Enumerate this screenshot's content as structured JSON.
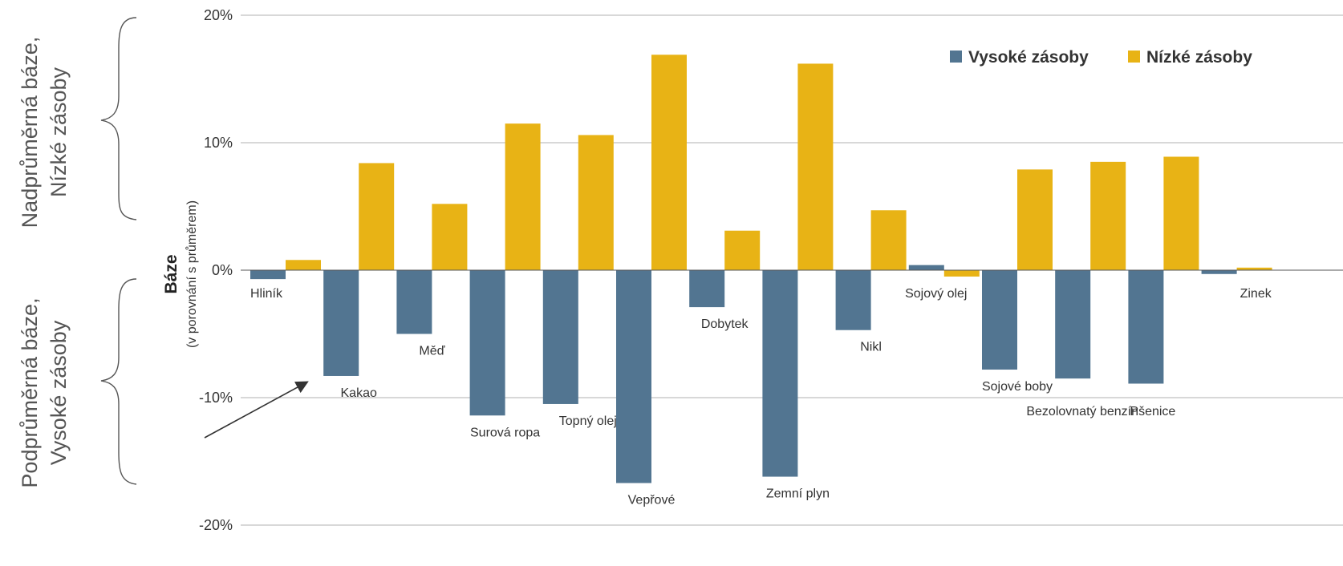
{
  "colors": {
    "high": "#527591",
    "low": "#E8B315",
    "grid": "#999999",
    "zero": "#555555",
    "arrow": "#333333",
    "brace": "#555555"
  },
  "labels": {
    "upper_side_line1": "Nadprůměrná báze,",
    "upper_side_line2": "Nízké zásoby",
    "lower_side_line1": "Podprůměrná báze,",
    "lower_side_line2": "Vysoké zásoby",
    "ylabel": "Báze",
    "ylabel_sub": "(v porovnání s průměrem)"
  },
  "chart_data": {
    "type": "bar",
    "title": "",
    "ylim": [
      -20,
      20
    ],
    "yticks": [
      20,
      10,
      0,
      -10,
      -20
    ],
    "ytick_labels": [
      "20%",
      "10%",
      "0%",
      "-10%",
      "-20%"
    ],
    "grid": true,
    "legend_position": "top-right",
    "categories": [
      "Hliník",
      "Kakao",
      "Měď",
      "Surová ropa",
      "Topný olej",
      "Vepřové",
      "Dobytek",
      "Zemní plyn",
      "Nikl",
      "Sojový olej",
      "Sojové boby",
      "Bezolovnatý benzín",
      "Pšenice",
      "Zinek"
    ],
    "series": [
      {
        "name": "Vysoké zásoby",
        "values": [
          -0.7,
          -8.3,
          -5.0,
          -11.4,
          -10.5,
          -16.7,
          -2.9,
          -16.2,
          -4.7,
          0.4,
          -7.8,
          -8.5,
          -8.9,
          -0.3
        ]
      },
      {
        "name": "Nízké zásoby",
        "values": [
          0.8,
          8.4,
          5.2,
          11.5,
          10.6,
          16.9,
          3.1,
          16.2,
          4.7,
          -0.5,
          7.9,
          8.5,
          8.9,
          0.2
        ]
      }
    ]
  }
}
